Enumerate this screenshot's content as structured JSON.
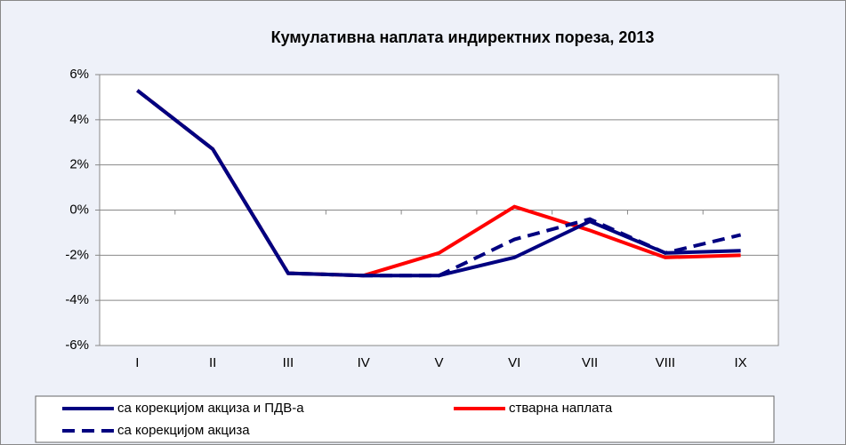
{
  "chart_data": {
    "type": "line",
    "title": "Кумулативна  наплата индиректних пореза, 2013",
    "categories": [
      "I",
      "II",
      "III",
      "IV",
      "V",
      "VI",
      "VII",
      "VIII",
      "IX"
    ],
    "series": [
      {
        "name": "са корекцијом акциза и ПДВ-а",
        "color": "#000080",
        "dash": "solid",
        "values": [
          5.3,
          2.7,
          -2.8,
          -2.9,
          -2.9,
          -2.1,
          -0.5,
          -1.9,
          -1.8
        ]
      },
      {
        "name": "стварна наплата",
        "color": "#ff0000",
        "dash": "solid",
        "values": [
          5.3,
          2.7,
          -2.8,
          -2.9,
          -1.9,
          0.15,
          -0.9,
          -2.1,
          -2.0
        ]
      },
      {
        "name": "са корекцијом акциза",
        "color": "#000080",
        "dash": "dashed",
        "values": [
          5.3,
          2.7,
          -2.8,
          -2.9,
          -2.9,
          -1.3,
          -0.4,
          -1.9,
          -1.1
        ]
      }
    ],
    "ylim": [
      -6,
      6
    ],
    "yticks": [
      {
        "value": -6,
        "label": "-6%"
      },
      {
        "value": -4,
        "label": "-4%"
      },
      {
        "value": -2,
        "label": "-2%"
      },
      {
        "value": 0,
        "label": "0%"
      },
      {
        "value": 2,
        "label": "2%"
      },
      {
        "value": 4,
        "label": "4%"
      },
      {
        "value": 6,
        "label": "6%"
      }
    ],
    "grid": true
  }
}
